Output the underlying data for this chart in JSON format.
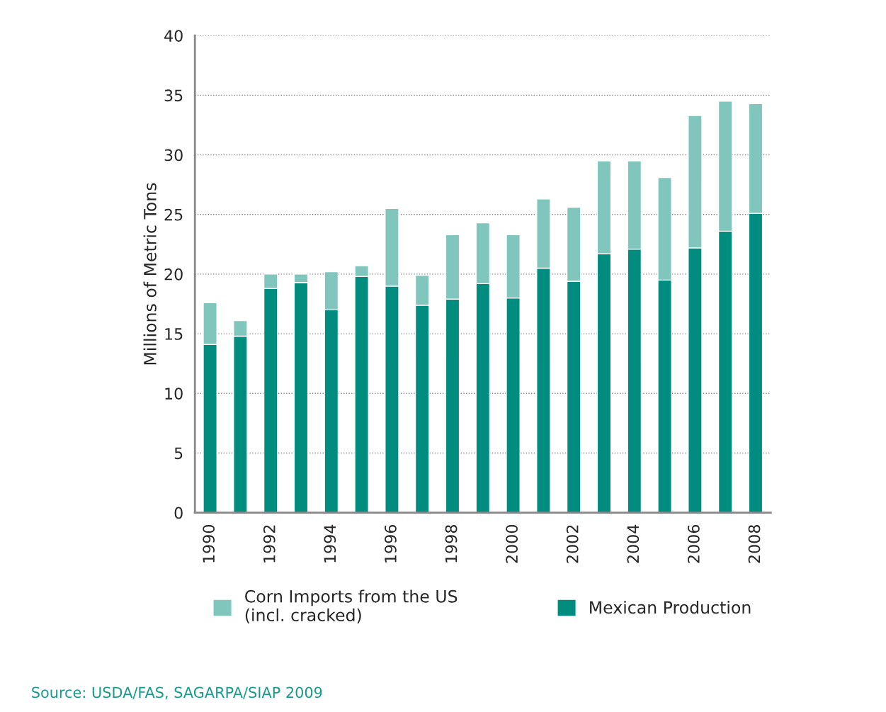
{
  "chart_data": {
    "type": "bar",
    "stacked": true,
    "ylabel": "Millions of Metric Tons",
    "categories": [
      "1990",
      null,
      "1992",
      null,
      "1994",
      null,
      "1996",
      null,
      "1998",
      null,
      "2000",
      null,
      "2002",
      null,
      "2004",
      null,
      "2006",
      null,
      "2008"
    ],
    "series": [
      {
        "name": "Mexican Production",
        "color": "#008c7e",
        "values": [
          14.1,
          14.8,
          18.8,
          19.3,
          17.0,
          19.8,
          19.0,
          17.4,
          17.9,
          19.2,
          18.0,
          20.5,
          19.4,
          21.7,
          22.1,
          19.5,
          22.2,
          23.6,
          25.1
        ]
      },
      {
        "name": "Corn Imports from the US\n(incl. cracked)",
        "color": "#80c6bc",
        "values": [
          3.5,
          1.3,
          1.2,
          0.7,
          3.2,
          0.9,
          6.5,
          2.5,
          5.4,
          5.1,
          5.3,
          5.8,
          6.2,
          7.8,
          7.4,
          8.6,
          11.1,
          10.9,
          9.2
        ]
      }
    ],
    "ylim": [
      0,
      40
    ],
    "yticks": [
      0,
      5,
      10,
      15,
      20,
      25,
      30,
      35,
      40
    ],
    "grid": "y",
    "legend": "bottom",
    "annotations": [
      "Source: USDA/FAS, SAGARPA/SIAP 2009"
    ]
  }
}
